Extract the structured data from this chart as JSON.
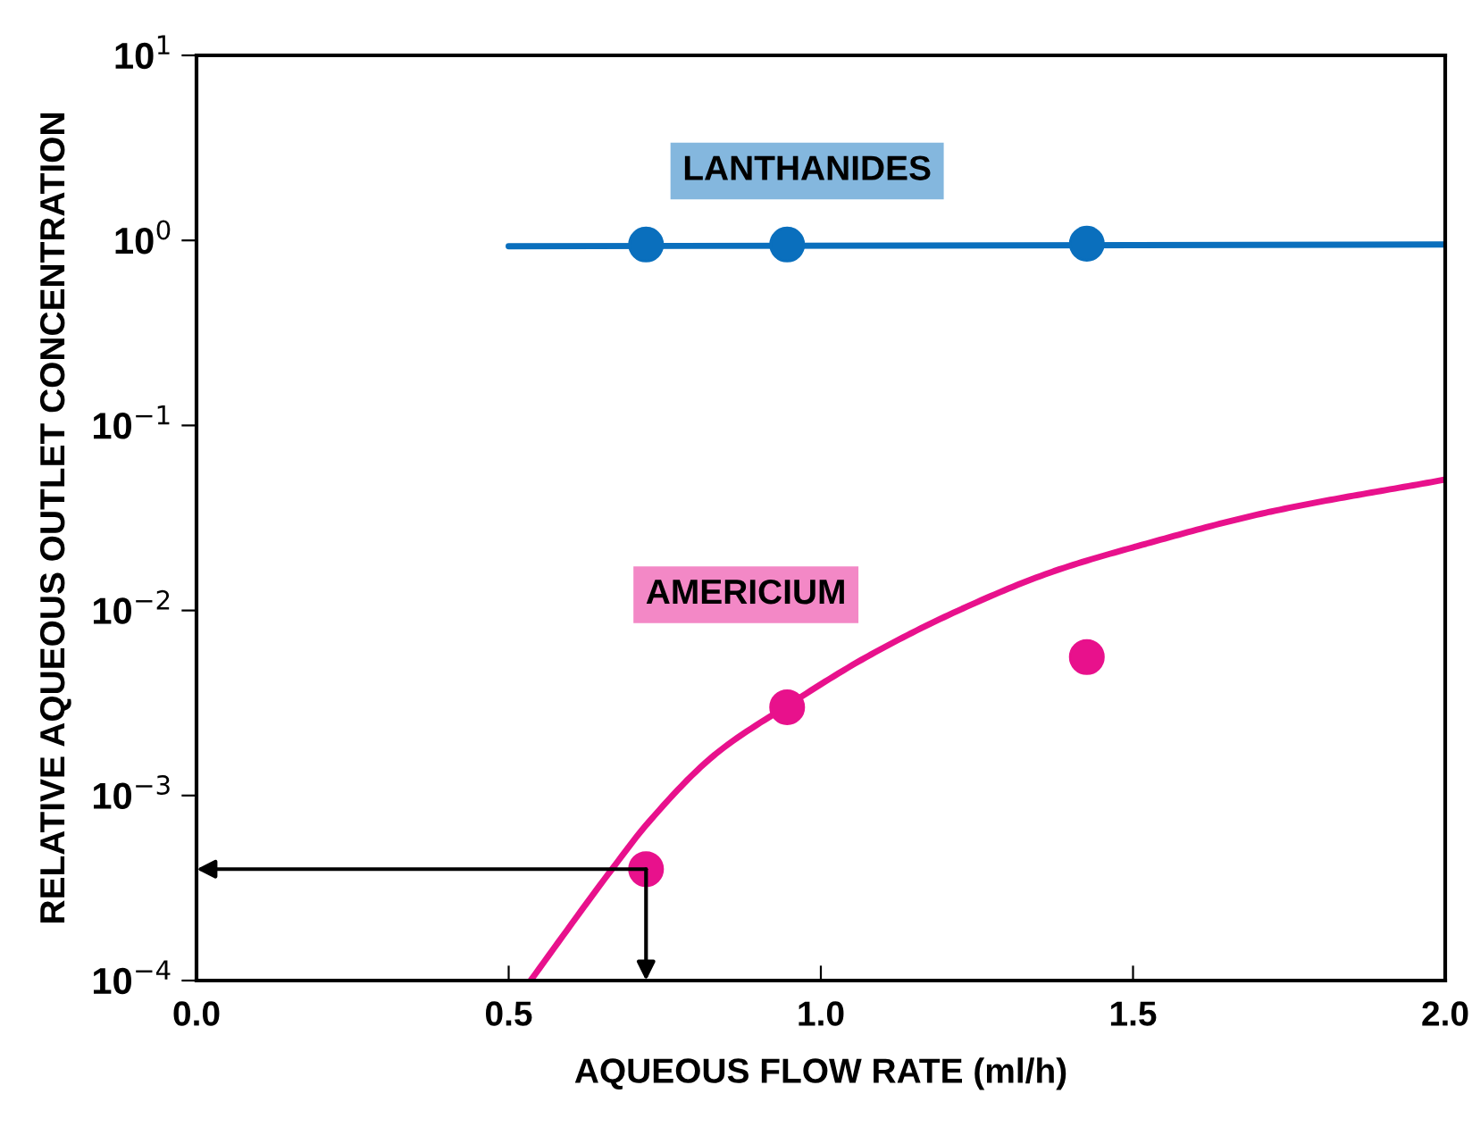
{
  "chart_data": {
    "type": "scatter",
    "xlabel": "AQUEOUS FLOW RATE (ml/h)",
    "ylabel": "RELATIVE AQUEOUS OUTLET CONCENTRATION",
    "log": "y",
    "xlim": [
      0,
      2.0
    ],
    "xticks": [
      {
        "value": 0,
        "label": "0.0"
      },
      0.5,
      {
        "value": 1,
        "label": "1.0"
      },
      1.5,
      {
        "value": 2,
        "label": "2.0"
      }
    ],
    "ylim": [
      0.0001,
      10
    ],
    "yticks": [
      {
        "value": 0.0001,
        "label": "10$^{−4}$"
      },
      {
        "value": 0.001,
        "label": "10$^{−3}$"
      },
      {
        "value": 0.01,
        "label": "10$^{−2}$"
      },
      {
        "value": 0.1,
        "label": "10$^{−1}$"
      },
      {
        "value": 1,
        "label": "10$^{0}$"
      },
      {
        "value": 10,
        "label": "10$^{1}$"
      }
    ],
    "grid": false,
    "legend": false,
    "series": [
      {
        "name": "LANTHANIDES",
        "type": "line",
        "marker": "none",
        "color": "#0a6fbd",
        "x": [
          0.5,
          2.0
        ],
        "values": [
          0.93,
          0.95
        ]
      },
      {
        "marker": "circle",
        "color": "#0a6fbd",
        "x": [
          0.72,
          0.946,
          1.426
        ],
        "values": [
          0.95,
          0.95,
          0.96
        ]
      },
      {
        "name": "AMERICIUM",
        "type": "line",
        "marker": "none",
        "color": "#e8118c",
        "x": [
          0.535,
          0.663,
          0.723,
          0.831,
          0.949,
          1.077,
          1.226,
          1.371,
          1.52,
          1.717,
          2.0
        ],
        "values": [
          0.0001,
          0.00039,
          0.00071,
          0.00167,
          0.0031,
          0.0057,
          0.0102,
          0.0162,
          0.0229,
          0.034,
          0.051
        ]
      },
      {
        "marker": "circle",
        "color": "#e8118c",
        "x": [
          0.72,
          0.946,
          1.426
        ],
        "values": [
          0.0004,
          0.003,
          0.0056
        ]
      }
    ]
  }
}
